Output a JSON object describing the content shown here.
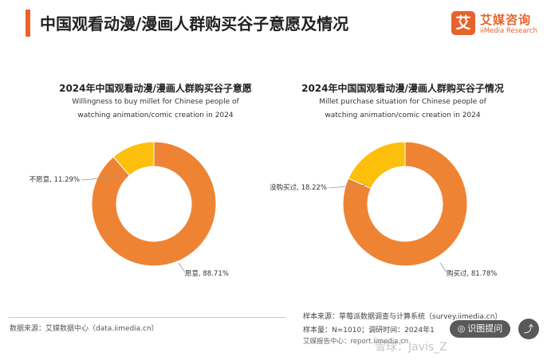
{
  "page": {
    "title": "中国观看动漫/漫画人群购买谷子意愿及情况"
  },
  "logo": {
    "glyph": "艾",
    "name_cn": "艾媒咨询",
    "name_en": "iiMedia Research",
    "color": "#e8632b"
  },
  "chart_data": [
    {
      "type": "pie",
      "style": "donut",
      "title": "2024年中国观看动漫/漫画人群购买谷子意愿",
      "subtitle_line1": "Willingness to buy millet for Chinese people of",
      "subtitle_line2": "watching animation/comic creation in 2024",
      "categories": [
        "愿意",
        "不愿意"
      ],
      "values": [
        88.71,
        11.29
      ],
      "labels": [
        "愿意, 88.71%",
        "不愿意, 11.29%"
      ],
      "colors": [
        "#ee8433",
        "#fcc00c"
      ]
    },
    {
      "type": "pie",
      "style": "donut",
      "title": "2024年中国国观看动漫/漫画人群购买谷子情况",
      "subtitle_line1": "Millet purchase situation for Chinese people of",
      "subtitle_line2": "watching animation/comic creation in 2024",
      "categories": [
        "购买过",
        "没购买过"
      ],
      "values": [
        81.78,
        18.22
      ],
      "labels": [
        "购买过, 81.78%",
        "没购买过, 18.22%"
      ],
      "colors": [
        "#ee8433",
        "#fcc00c"
      ]
    }
  ],
  "footer": {
    "data_source": "数据来源：艾媒数据中心（data.iimedia.cn）",
    "sample_source": "样本来源：草莓派数据调查与计算系统（survey.iimedia.cn）",
    "sample_size": "样本量：N=1010；调研时间：2024年1",
    "report_center": "艾媒报告中心：report.iimedia.cn",
    "watermark": "雪球：Javis_Z",
    "ocr_button": "识图提问",
    "ocr_icon": "camera-icon",
    "share_icon": "share-icon"
  }
}
